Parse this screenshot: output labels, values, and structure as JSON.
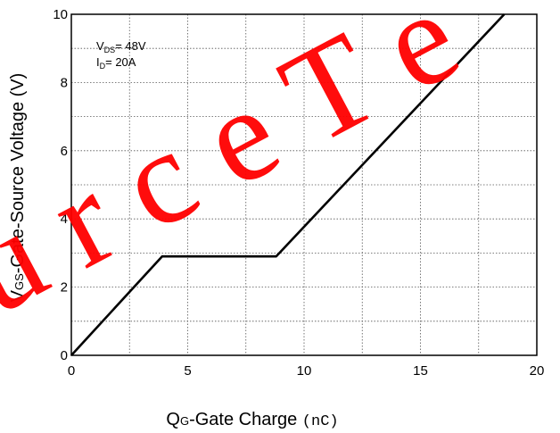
{
  "chart_data": {
    "type": "line",
    "xlabel": "QG-Gate Charge (nC)",
    "xlabel_parts": {
      "q": "Q",
      "sub": "G",
      "rest": "-Gate Charge ",
      "unit": "(nC)"
    },
    "ylabel": "VGS-Gate-Source Voltage (V)",
    "ylabel_parts": {
      "v": "V",
      "sub": "GS",
      "rest": "-Gate-Source Voltage (V)"
    },
    "xlim": [
      0,
      20
    ],
    "ylim": [
      0,
      10
    ],
    "x_ticks": [
      0,
      5,
      10,
      15,
      20
    ],
    "y_ticks": [
      0,
      2,
      4,
      6,
      8,
      10
    ],
    "grid": "dotted, both axes",
    "annotations": [
      {
        "main": "V",
        "sub": "DS",
        "rest": "= 48V"
      },
      {
        "main": "I",
        "sub": "D",
        "rest": "= 20A"
      }
    ],
    "series": [
      {
        "x": [
          0,
          3.9,
          8.8,
          18.6
        ],
        "y": [
          0,
          2.9,
          2.9,
          10
        ]
      }
    ]
  },
  "watermark": {
    "text": "urceTe",
    "color": "#ff0000"
  }
}
